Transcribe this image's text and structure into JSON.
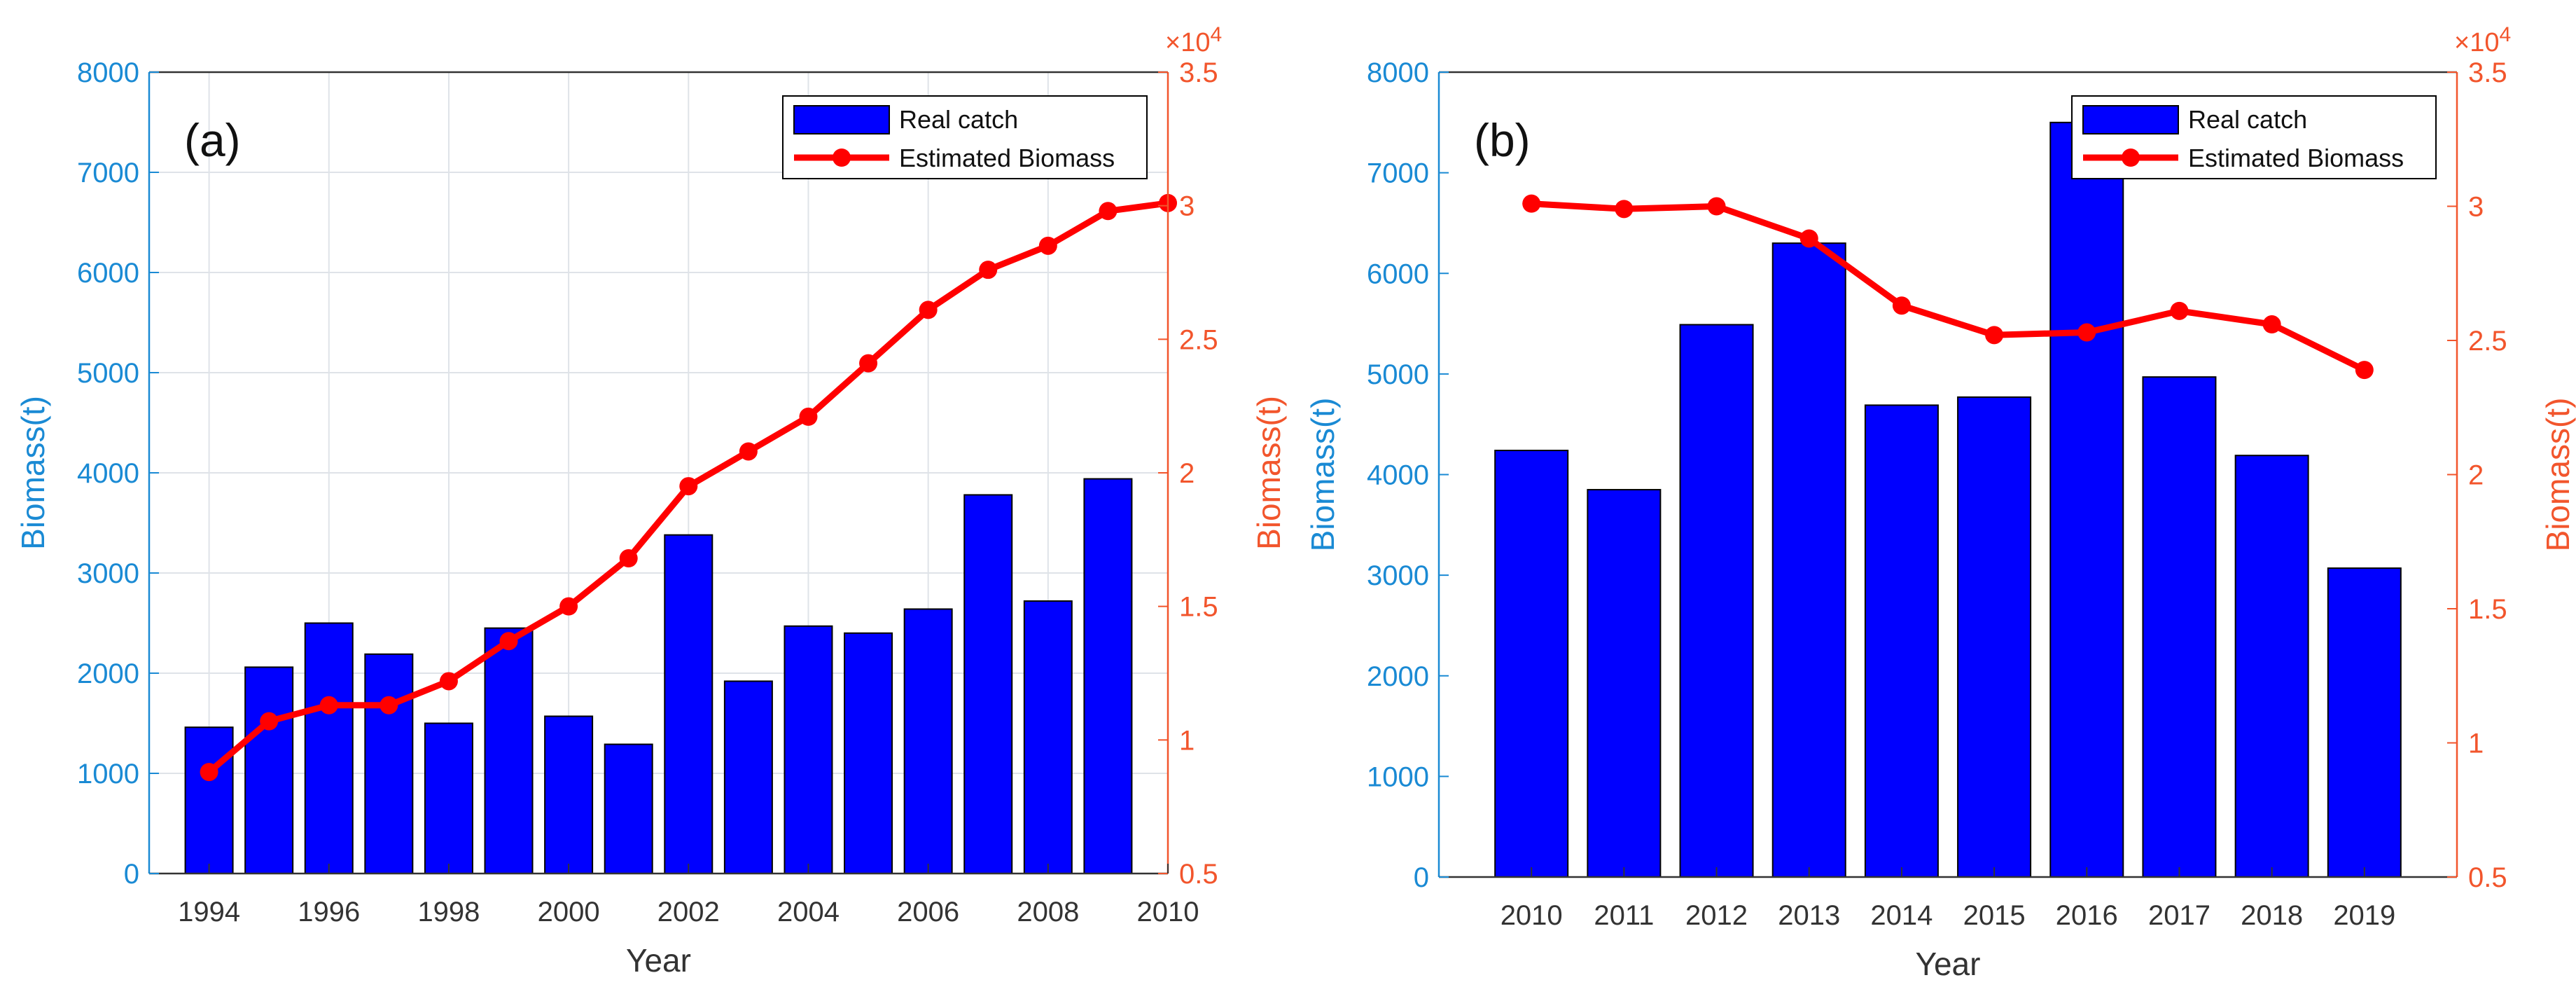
{
  "colors": {
    "bar_fill": "#0000ff",
    "bar_edge": "#000000",
    "line": "#ff0000",
    "left_axis": "#1a8ad4",
    "right_axis": "#f2552c",
    "grid": "#dfe3e8",
    "axis_text": "#333333"
  },
  "chart_data": [
    {
      "type": "bar",
      "panel_label": "(a)",
      "title": "",
      "xlabel": "Year",
      "ylabel_left": "Biomass(t)",
      "ylabel_right": "Biomass(t)",
      "right_exponent_prefix": "×10",
      "right_exponent_power": "4",
      "x_range": [
        1993,
        2010
      ],
      "ylim_left": [
        0,
        8000
      ],
      "ylim_right": [
        0.5,
        3.5
      ],
      "grid": true,
      "legend_position": "top-right",
      "x_ticks": [
        "1994",
        "1996",
        "1998",
        "2000",
        "2002",
        "2004",
        "2006",
        "2008",
        "2010"
      ],
      "y_ticks_left": [
        "0",
        "1000",
        "2000",
        "3000",
        "4000",
        "5000",
        "6000",
        "7000",
        "8000"
      ],
      "y_ticks_right": [
        "0.5",
        "1",
        "1.5",
        "2",
        "2.5",
        "3",
        "3.5"
      ],
      "categories": [
        1994,
        1995,
        1996,
        1997,
        1998,
        1999,
        2000,
        2001,
        2002,
        2003,
        2004,
        2005,
        2006,
        2007,
        2008,
        2009
      ],
      "series": [
        {
          "name": "Real catch",
          "kind": "bar",
          "axis": "left",
          "values": [
            1460,
            2060,
            2500,
            2190,
            1500,
            2450,
            1570,
            1290,
            3380,
            1920,
            2470,
            2400,
            2640,
            3780,
            2720,
            3940
          ]
        },
        {
          "name": "Estimated Biomass",
          "kind": "line",
          "axis": "right",
          "x": [
            1994,
            1995,
            1996,
            1997,
            1998,
            1999,
            2000,
            2001,
            2002,
            2003,
            2004,
            2005,
            2006,
            2007,
            2008,
            2009,
            2010
          ],
          "values": [
            0.88,
            1.07,
            1.13,
            1.13,
            1.22,
            1.37,
            1.5,
            1.68,
            1.95,
            2.08,
            2.21,
            2.41,
            2.61,
            2.76,
            2.85,
            2.98,
            3.01
          ]
        }
      ]
    },
    {
      "type": "bar",
      "panel_label": "(b)",
      "title": "",
      "xlabel": "Year",
      "ylabel_left": "Biomass(t)",
      "ylabel_right": "Biomass(t)",
      "right_exponent_prefix": "×10",
      "right_exponent_power": "4",
      "x_range": [
        2009,
        2020
      ],
      "ylim_left": [
        0,
        8000
      ],
      "ylim_right": [
        0.5,
        3.5
      ],
      "grid": false,
      "legend_position": "top-right",
      "x_ticks": [
        "2010",
        "2011",
        "2012",
        "2013",
        "2014",
        "2015",
        "2016",
        "2017",
        "2018",
        "2019"
      ],
      "y_ticks_left": [
        "0",
        "1000",
        "2000",
        "3000",
        "4000",
        "5000",
        "6000",
        "7000",
        "8000"
      ],
      "y_ticks_right": [
        "0.5",
        "1",
        "1.5",
        "2",
        "2.5",
        "3",
        "3.5"
      ],
      "categories": [
        2010,
        2011,
        2012,
        2013,
        2014,
        2015,
        2016,
        2017,
        2018,
        2019
      ],
      "series": [
        {
          "name": "Real catch",
          "kind": "bar",
          "axis": "left",
          "values": [
            4240,
            3850,
            5490,
            6300,
            4690,
            4770,
            7500,
            4970,
            4190,
            3070
          ]
        },
        {
          "name": "Estimated Biomass",
          "kind": "line",
          "axis": "right",
          "x": [
            2010,
            2011,
            2012,
            2013,
            2014,
            2015,
            2016,
            2017,
            2018,
            2019
          ],
          "values": [
            3.01,
            2.99,
            3.0,
            2.88,
            2.63,
            2.52,
            2.53,
            2.61,
            2.56,
            2.39
          ]
        }
      ]
    }
  ]
}
